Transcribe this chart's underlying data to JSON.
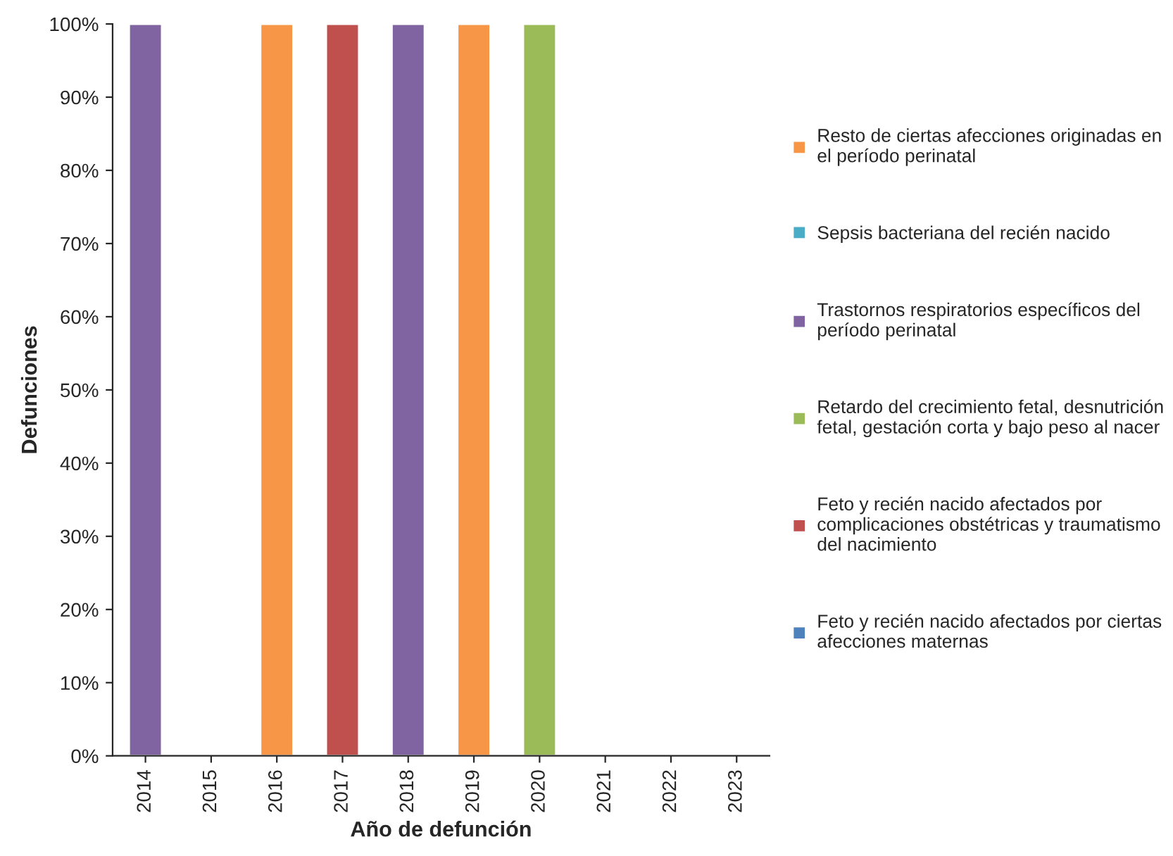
{
  "chart_data": {
    "type": "bar",
    "xlabel": "Año de defunción",
    "ylabel": "Defunciones",
    "categories": [
      "2014",
      "2015",
      "2016",
      "2017",
      "2018",
      "2019",
      "2020",
      "2021",
      "2022",
      "2023"
    ],
    "series": [
      {
        "name": "Feto y recién nacido afectados por ciertas\nafecciones maternas",
        "color": "#4f81bd",
        "values": [
          null,
          null,
          null,
          null,
          null,
          null,
          null,
          null,
          null,
          null
        ]
      },
      {
        "name": "Feto y recién nacido afectados por\ncomplicaciones obstétricas y traumatismo\ndel nacimiento",
        "color": "#c0504d",
        "values": [
          null,
          null,
          null,
          100,
          null,
          null,
          null,
          null,
          null,
          null
        ]
      },
      {
        "name": "Retardo del crecimiento fetal, desnutrición\nfetal, gestación corta y bajo peso al nacer",
        "color": "#9bbb59",
        "values": [
          null,
          null,
          null,
          null,
          null,
          null,
          100,
          null,
          null,
          null
        ]
      },
      {
        "name": "Trastornos respiratorios específicos del\nperíodo perinatal",
        "color": "#8064a2",
        "values": [
          100,
          null,
          null,
          null,
          100,
          null,
          null,
          null,
          null,
          null
        ]
      },
      {
        "name": "Sepsis bacteriana del recién nacido",
        "color": "#4bacc6",
        "values": [
          null,
          null,
          null,
          null,
          null,
          null,
          null,
          null,
          null,
          null
        ]
      },
      {
        "name": "Resto de ciertas afecciones originadas en\nel período perinatal",
        "color": "#f79646",
        "values": [
          null,
          null,
          100,
          null,
          null,
          100,
          null,
          null,
          null,
          null
        ]
      }
    ],
    "ylim": [
      0,
      100
    ],
    "yticks": [
      {
        "value": 0,
        "label": "0%"
      },
      {
        "value": 10,
        "label": "10%"
      },
      {
        "value": 20,
        "label": "20%"
      },
      {
        "value": 30,
        "label": "30%"
      },
      {
        "value": 40,
        "label": "40%"
      },
      {
        "value": 50,
        "label": "50%"
      },
      {
        "value": 60,
        "label": "60%"
      },
      {
        "value": 70,
        "label": "70%"
      },
      {
        "value": 80,
        "label": "80%"
      },
      {
        "value": 90,
        "label": "90%"
      },
      {
        "value": 100,
        "label": "100%"
      }
    ],
    "grid": false,
    "legend": "right"
  }
}
